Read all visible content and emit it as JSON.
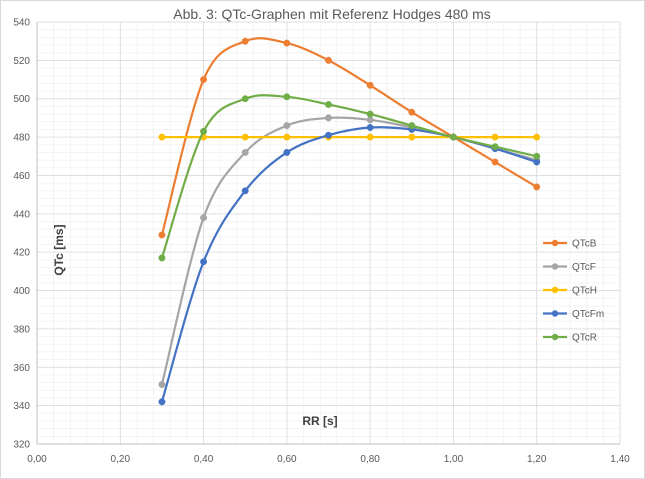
{
  "chart_data": {
    "type": "line",
    "title": "Abb. 3: QTc-Graphen mit Referenz Hodges 480 ms",
    "xlabel": "RR [s]",
    "ylabel": "QTc [ms]",
    "xlim": [
      0,
      1.4
    ],
    "ylim": [
      320,
      540
    ],
    "x_ticks": [
      "0,00",
      "0,20",
      "0,40",
      "0,60",
      "0,80",
      "1,00",
      "1,20",
      "1,40"
    ],
    "y_ticks": [
      "320",
      "340",
      "360",
      "380",
      "400",
      "420",
      "440",
      "460",
      "480",
      "500",
      "520",
      "540"
    ],
    "grid": true,
    "legend_position": "right",
    "series": [
      {
        "name": "QTcB",
        "color": "#ED7D31",
        "x": [
          0.3,
          0.4,
          0.5,
          0.6,
          0.7,
          0.8,
          0.9,
          1.0,
          1.1,
          1.2
        ],
        "y": [
          429,
          510,
          530,
          529,
          520,
          507,
          493,
          480,
          467,
          454
        ]
      },
      {
        "name": "QTcF",
        "color": "#A5A5A5",
        "x": [
          0.3,
          0.4,
          0.5,
          0.6,
          0.7,
          0.8,
          0.9,
          1.0,
          1.1,
          1.2
        ],
        "y": [
          351,
          438,
          472,
          486,
          490,
          489,
          485,
          480,
          474,
          468
        ]
      },
      {
        "name": "QTcH",
        "color": "#FFC000",
        "x": [
          0.3,
          0.4,
          0.5,
          0.6,
          0.7,
          0.8,
          0.9,
          1.0,
          1.1,
          1.2
        ],
        "y": [
          480,
          480,
          480,
          480,
          480,
          480,
          480,
          480,
          480,
          480
        ]
      },
      {
        "name": "QTcFm",
        "color": "#4472C4",
        "x": [
          0.3,
          0.4,
          0.5,
          0.6,
          0.7,
          0.8,
          0.9,
          1.0,
          1.1,
          1.2
        ],
        "y": [
          342,
          415,
          452,
          472,
          481,
          485,
          484,
          480,
          474,
          467
        ]
      },
      {
        "name": "QTcR",
        "color": "#70AD47",
        "x": [
          0.3,
          0.4,
          0.5,
          0.6,
          0.7,
          0.8,
          0.9,
          1.0,
          1.1,
          1.2
        ],
        "y": [
          417,
          483,
          500,
          501,
          497,
          492,
          486,
          480,
          475,
          470
        ]
      }
    ]
  }
}
